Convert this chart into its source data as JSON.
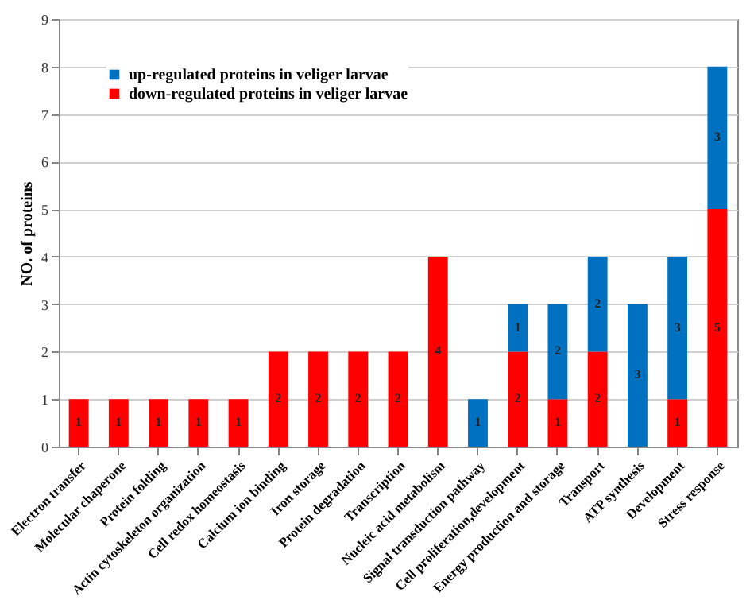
{
  "chart_data": {
    "type": "bar",
    "stacked": true,
    "ylabel": "NO. of proteins",
    "categories": [
      "Electron transfer",
      "Molecular chaperone",
      "Protein folding",
      "Actin cytoskeleton organization",
      "Cell redox homeostasis",
      "Calcium ion binding",
      "Iron storage",
      "Protein degradation",
      "Transcription",
      "Nucleic acid metabolism",
      "Signal transduction pathway",
      "Cell proliferation,development",
      "Energy production and storage",
      "Transport",
      "ATP synthesis",
      "Development",
      "Stress response"
    ],
    "series": [
      {
        "name": "down-regulated proteins in veliger larvae",
        "color": "#ff0000",
        "values": [
          1,
          1,
          1,
          1,
          1,
          2,
          2,
          2,
          2,
          4,
          0,
          2,
          1,
          2,
          0,
          1,
          5
        ],
        "value_labels": [
          "1",
          "1",
          "1",
          "1",
          "1",
          "2",
          "2",
          "2",
          "2",
          "4",
          null,
          "2",
          "1",
          "2",
          null,
          "1",
          "5"
        ]
      },
      {
        "name": "up-regulated proteins in veliger larvae",
        "color": "#0070c0",
        "values": [
          0,
          0,
          0,
          0,
          0,
          0,
          0,
          0,
          0,
          0,
          1,
          1,
          2,
          2,
          3,
          3,
          3
        ],
        "value_labels": [
          null,
          null,
          null,
          null,
          null,
          null,
          null,
          null,
          null,
          null,
          "1",
          "1",
          "2",
          "2",
          "3",
          "3",
          "3"
        ]
      }
    ],
    "ylim": [
      0,
      9
    ],
    "yticks": [
      0,
      1,
      2,
      3,
      4,
      5,
      6,
      7,
      8,
      9
    ],
    "grid": "y",
    "legend": "top left"
  }
}
